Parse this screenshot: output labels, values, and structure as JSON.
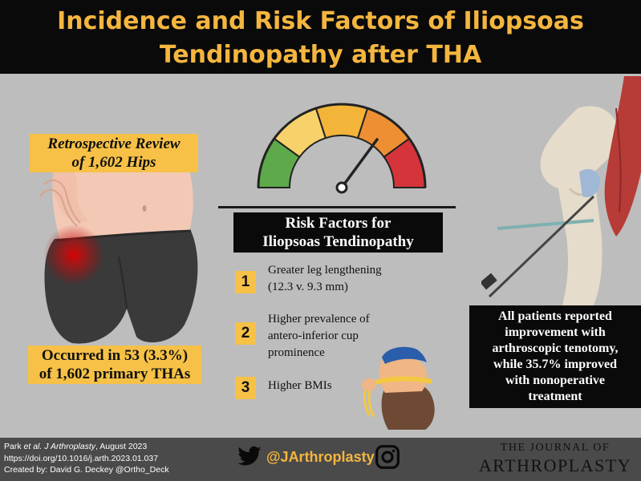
{
  "title": {
    "line1": "Incidence and Risk Factors of Iliopsoas",
    "line2": "Tendinopathy after THA"
  },
  "retrospective": {
    "line1": "Retrospective Review",
    "line2": "of 1,602 Hips"
  },
  "occurred": {
    "line1": "Occurred in 53 (3.3%)",
    "line2": "of 1,602 primary THAs"
  },
  "risk_factors": {
    "heading_line1": "Risk Factors for",
    "heading_line2": "Iliopsoas Tendinopathy",
    "items": [
      {
        "num": "1",
        "line1": "Greater leg lengthening",
        "line2": "(12.3 v. 9.3 mm)",
        "line3": ""
      },
      {
        "num": "2",
        "line1": "Higher prevalence of",
        "line2": "antero-inferior cup",
        "line3": "prominence"
      },
      {
        "num": "3",
        "line1": "Higher BMIs",
        "line2": "",
        "line3": ""
      }
    ]
  },
  "outcome": {
    "line1": "All patients reported",
    "line2": "improvement with",
    "line3": "arthroscopic tenotomy,",
    "line4": "while 35.7% improved",
    "line5": "with nonoperative",
    "line6": "treatment"
  },
  "footer": {
    "cite_author": "Park ",
    "cite_etal": "et al. J Arthroplasty",
    "cite_date": ", August 2023",
    "doi": "https://doi.org/10.1016/j.arth.2023.01.037",
    "created_by": "Created by: David G. Deckey @Ortho_Deck",
    "handle": "@JArthroplasty",
    "journal_line1": "THE JOURNAL OF",
    "journal_line2": "ARTHROPLASTY"
  },
  "icons": [
    "twitter-icon",
    "instagram-icon"
  ],
  "colors": {
    "accent_yellow": "#f6c146",
    "title_gold": "#f4b63f",
    "gauge_green": "#5ea94a",
    "gauge_yellow": "#f7d26a",
    "gauge_orange": "#ee8f34",
    "gauge_red": "#d5343b"
  }
}
